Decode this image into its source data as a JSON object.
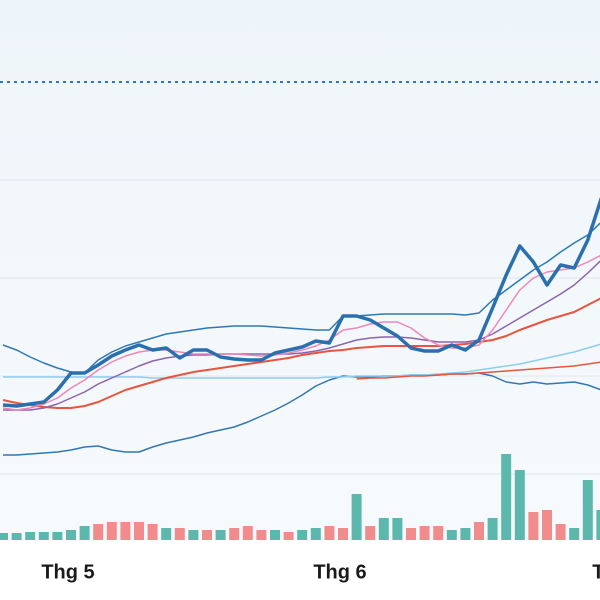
{
  "chart_data": {
    "type": "line",
    "categories": [
      null,
      null,
      null,
      null,
      null,
      "Thg 5",
      null,
      null,
      null,
      null,
      null,
      null,
      null,
      null,
      null,
      null,
      null,
      null,
      null,
      null,
      null,
      null,
      null,
      null,
      null,
      "Thg 6",
      null,
      null,
      null,
      null,
      null,
      null,
      null,
      null,
      null,
      null,
      null,
      null,
      null,
      null,
      null,
      null,
      null,
      null,
      "T"
    ],
    "ylim": [
      0,
      600
    ],
    "reference_line": 518,
    "series": [
      {
        "name": "upper-band",
        "color": "#2f78b5",
        "width": 1.5,
        "values": [
          255,
          250,
          243,
          237,
          232,
          228,
          227,
          240,
          248,
          254,
          258,
          262,
          266,
          268,
          270,
          272,
          273,
          274,
          274,
          274,
          273,
          272,
          271,
          270,
          270,
          284,
          284,
          285,
          286,
          286,
          286,
          286,
          286,
          286,
          285,
          287,
          300,
          310,
          320,
          330,
          338,
          348,
          357,
          365,
          378
        ]
      },
      {
        "name": "lower-band",
        "color": "#2f78b5",
        "width": 1.5,
        "values": [
          145,
          145,
          146,
          147,
          148,
          150,
          153,
          154,
          150,
          148,
          148,
          153,
          157,
          160,
          163,
          167,
          170,
          173,
          178,
          184,
          190,
          197,
          205,
          214,
          220,
          224,
          223,
          223,
          224,
          224,
          225,
          225,
          225,
          226,
          226,
          227,
          224,
          218,
          216,
          218,
          216,
          217,
          218,
          215,
          210
        ]
      },
      {
        "name": "light-ma",
        "color": "#8ecdf0",
        "width": 1.5,
        "values": [
          223,
          223,
          223,
          223,
          223,
          223,
          223,
          223,
          223,
          223,
          223,
          222,
          222,
          222,
          222,
          222,
          222,
          222,
          222,
          222,
          222,
          222,
          222,
          222,
          223,
          223,
          224,
          224,
          224,
          224,
          225,
          225,
          226,
          227,
          228,
          230,
          232,
          234,
          236,
          239,
          242,
          245,
          248,
          252,
          256
        ]
      },
      {
        "name": "low-red",
        "color": "#e8553f",
        "width": 1.5,
        "values": [
          null,
          null,
          null,
          null,
          null,
          null,
          null,
          null,
          null,
          null,
          null,
          null,
          null,
          null,
          null,
          null,
          null,
          null,
          null,
          null,
          null,
          null,
          null,
          null,
          null,
          null,
          221,
          222,
          222,
          223,
          224,
          224,
          225,
          226,
          226,
          227,
          228,
          229,
          230,
          231,
          232,
          233,
          234,
          236,
          238
        ]
      },
      {
        "name": "red-ma",
        "color": "#e8553f",
        "width": 2,
        "values": [
          200,
          197,
          195,
          193,
          192,
          192,
          194,
          198,
          204,
          210,
          214,
          218,
          222,
          225,
          228,
          230,
          232,
          234,
          236,
          238,
          240,
          242,
          245,
          247,
          249,
          250,
          252,
          253,
          254,
          254,
          254,
          254,
          254,
          255,
          256,
          258,
          260,
          264,
          270,
          275,
          280,
          284,
          288,
          295,
          302
        ]
      },
      {
        "name": "purple-ma",
        "color": "#8b63b0",
        "width": 1.5,
        "values": [
          190,
          190,
          190,
          192,
          196,
          202,
          208,
          216,
          222,
          228,
          234,
          239,
          242,
          244,
          245,
          245,
          246,
          246,
          246,
          246,
          246,
          246,
          247,
          249,
          252,
          256,
          260,
          262,
          263,
          263,
          262,
          260,
          258,
          258,
          258,
          260,
          266,
          274,
          282,
          290,
          298,
          306,
          315,
          327,
          340
        ]
      },
      {
        "name": "pink-ma",
        "color": "#ef86b7",
        "width": 1.5,
        "values": [
          192,
          190,
          192,
          196,
          202,
          212,
          220,
          230,
          238,
          244,
          248,
          250,
          250,
          248,
          246,
          246,
          246,
          246,
          245,
          244,
          245,
          247,
          250,
          254,
          260,
          270,
          272,
          276,
          278,
          278,
          272,
          262,
          255,
          252,
          252,
          255,
          270,
          290,
          310,
          322,
          328,
          330,
          332,
          338,
          345
        ]
      },
      {
        "name": "price",
        "color": "#2a6fae",
        "width": 3.5,
        "values": [
          195,
          194,
          196,
          198,
          210,
          227,
          227,
          235,
          244,
          250,
          255,
          250,
          252,
          242,
          250,
          250,
          243,
          241,
          240,
          240,
          247,
          250,
          253,
          259,
          257,
          284,
          284,
          280,
          272,
          264,
          252,
          249,
          249,
          255,
          250,
          260,
          292,
          325,
          354,
          338,
          315,
          335,
          332,
          360,
          402
        ]
      }
    ],
    "volume": {
      "y2lim": [
        0,
        540
      ],
      "values": [
        7,
        7,
        8,
        8,
        8,
        10,
        14,
        16,
        18,
        18,
        18,
        16,
        12,
        12,
        10,
        10,
        10,
        12,
        14,
        10,
        10,
        8,
        10,
        12,
        14,
        12,
        46,
        14,
        22,
        22,
        12,
        14,
        14,
        10,
        12,
        18,
        22,
        86,
        70,
        28,
        30,
        16,
        12,
        60,
        30
      ],
      "colors": [
        "#5cb8ad",
        "#5cb8ad",
        "#5cb8ad",
        "#5cb8ad",
        "#5cb8ad",
        "#5cb8ad",
        "#5cb8ad",
        "#f28b8b",
        "#f28b8b",
        "#f28b8b",
        "#f28b8b",
        "#f28b8b",
        "#5cb8ad",
        "#f28b8b",
        "#5cb8ad",
        "#f28b8b",
        "#5cb8ad",
        "#f28b8b",
        "#f28b8b",
        "#f28b8b",
        "#5cb8ad",
        "#f28b8b",
        "#5cb8ad",
        "#5cb8ad",
        "#f28b8b",
        "#f28b8b",
        "#5cb8ad",
        "#f28b8b",
        "#5cb8ad",
        "#5cb8ad",
        "#f28b8b",
        "#f28b8b",
        "#f28b8b",
        "#5cb8ad",
        "#5cb8ad",
        "#f28b8b",
        "#5cb8ad",
        "#5cb8ad",
        "#5cb8ad",
        "#f28b8b",
        "#f28b8b",
        "#f28b8b",
        "#5cb8ad",
        "#5cb8ad",
        "#5cb8ad"
      ]
    }
  }
}
